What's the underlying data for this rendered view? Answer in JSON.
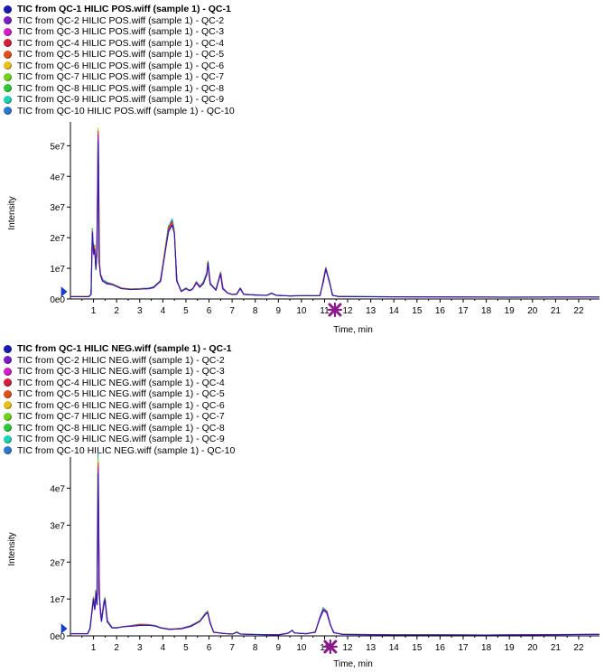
{
  "chart_data": [
    {
      "type": "line",
      "id": "pos",
      "xlabel": "Time, min",
      "ylabel": "Intensity",
      "xlim": [
        0.0,
        22.9
      ],
      "ylim": [
        0,
        56000000
      ],
      "x_ticks": [
        "1",
        "2",
        "3",
        "4",
        "5",
        "6",
        "7",
        "8",
        "9",
        "10",
        "11",
        "12",
        "13",
        "14",
        "15",
        "16",
        "17",
        "18",
        "19",
        "20",
        "21",
        "22"
      ],
      "y_ticks": [
        {
          "label": "0e0",
          "value": 0
        },
        {
          "label": "1e7",
          "value": 10000000
        },
        {
          "label": "2e7",
          "value": 20000000
        },
        {
          "label": "3e7",
          "value": 30000000
        },
        {
          "label": "4e7",
          "value": 40000000
        },
        {
          "label": "5e7",
          "value": 50000000
        }
      ],
      "grid": false,
      "legend_position": "top-left",
      "marker_start_arrow": "blue right-pointing arrow at 0e0",
      "marker_cursor_x": 11.45,
      "series": [
        {
          "name": "TIC from QC-1 HILIC POS.wiff (sample 1) - QC-1",
          "color": "#1a1ab0",
          "bold": true
        },
        {
          "name": "TIC from QC-2 HILIC POS.wiff (sample 1) - QC-2",
          "color": "#7a1fc8"
        },
        {
          "name": "TIC from QC-3 HILIC POS.wiff (sample 1) - QC-3",
          "color": "#d21fc8"
        },
        {
          "name": "TIC from QC-4 HILIC POS.wiff (sample 1) - QC-4",
          "color": "#d21f3c"
        },
        {
          "name": "TIC from QC-5 HILIC POS.wiff (sample 1) - QC-5",
          "color": "#e0501a"
        },
        {
          "name": "TIC from QC-6 HILIC POS.wiff (sample 1) - QC-6",
          "color": "#e6c21a"
        },
        {
          "name": "TIC from QC-7 HILIC POS.wiff (sample 1) - QC-7",
          "color": "#6fd21f"
        },
        {
          "name": "TIC from QC-8 HILIC POS.wiff (sample 1) - QC-8",
          "color": "#2dc83c"
        },
        {
          "name": "TIC from QC-9 HILIC POS.wiff (sample 1) - QC-9",
          "color": "#1fd2b4"
        },
        {
          "name": "TIC from QC-10 HILIC POS.wiff (sample 1) - QC-10",
          "color": "#2d78d2"
        }
      ],
      "trace_points": [
        [
          0.0,
          800000
        ],
        [
          0.8,
          800000
        ],
        [
          0.9,
          1500000
        ],
        [
          0.95,
          22000000
        ],
        [
          1.0,
          15000000
        ],
        [
          1.05,
          17000000
        ],
        [
          1.1,
          10000000
        ],
        [
          1.15,
          16000000
        ],
        [
          1.2,
          54000000
        ],
        [
          1.25,
          12000000
        ],
        [
          1.3,
          8000000
        ],
        [
          1.4,
          6000000
        ],
        [
          1.6,
          5200000
        ],
        [
          1.8,
          4800000
        ],
        [
          2.2,
          3500000
        ],
        [
          2.6,
          3200000
        ],
        [
          3.0,
          3300000
        ],
        [
          3.4,
          3500000
        ],
        [
          3.6,
          3800000
        ],
        [
          3.9,
          6000000
        ],
        [
          4.1,
          16000000
        ],
        [
          4.25,
          23000000
        ],
        [
          4.4,
          25000000
        ],
        [
          4.5,
          22000000
        ],
        [
          4.6,
          6000000
        ],
        [
          4.8,
          2500000
        ],
        [
          5.0,
          3500000
        ],
        [
          5.15,
          2800000
        ],
        [
          5.3,
          3300000
        ],
        [
          5.45,
          5500000
        ],
        [
          5.6,
          4000000
        ],
        [
          5.75,
          5200000
        ],
        [
          5.9,
          8500000
        ],
        [
          5.95,
          12000000
        ],
        [
          6.05,
          5000000
        ],
        [
          6.3,
          3000000
        ],
        [
          6.5,
          8500000
        ],
        [
          6.6,
          3500000
        ],
        [
          6.8,
          2000000
        ],
        [
          7.0,
          1500000
        ],
        [
          7.2,
          1600000
        ],
        [
          7.35,
          3500000
        ],
        [
          7.5,
          1500000
        ],
        [
          8.0,
          1300000
        ],
        [
          8.5,
          1200000
        ],
        [
          8.7,
          1900000
        ],
        [
          8.9,
          1200000
        ],
        [
          9.5,
          1000000
        ],
        [
          10.0,
          1100000
        ],
        [
          10.8,
          1100000
        ],
        [
          10.95,
          6000000
        ],
        [
          11.05,
          10000000
        ],
        [
          11.2,
          6000000
        ],
        [
          11.35,
          1200000
        ],
        [
          11.6,
          800000
        ],
        [
          14.0,
          700000
        ],
        [
          18.0,
          650000
        ],
        [
          19.0,
          600000
        ],
        [
          22.9,
          700000
        ]
      ]
    },
    {
      "type": "line",
      "id": "neg",
      "xlabel": "Time, min",
      "ylabel": "Intensity",
      "xlim": [
        0.0,
        22.9
      ],
      "ylim": [
        0,
        47000000
      ],
      "x_ticks": [
        "1",
        "2",
        "3",
        "4",
        "5",
        "6",
        "7",
        "8",
        "9",
        "10",
        "11",
        "12",
        "13",
        "14",
        "15",
        "16",
        "17",
        "18",
        "19",
        "20",
        "21",
        "22"
      ],
      "y_ticks": [
        {
          "label": "0e0",
          "value": 0
        },
        {
          "label": "1e7",
          "value": 10000000
        },
        {
          "label": "2e7",
          "value": 20000000
        },
        {
          "label": "3e7",
          "value": 30000000
        },
        {
          "label": "4e7",
          "value": 40000000
        }
      ],
      "grid": false,
      "legend_position": "top-left",
      "marker_start_arrow": "blue right-pointing arrow at 0e0",
      "marker_cursor_x": 11.25,
      "series": [
        {
          "name": "TIC from QC-1 HILIC NEG.wiff (sample 1) - QC-1",
          "color": "#1a1ab0",
          "bold": true
        },
        {
          "name": "TIC from QC-2 HILIC NEG.wiff (sample 1) - QC-2",
          "color": "#7a1fc8"
        },
        {
          "name": "TIC from QC-3 HILIC NEG.wiff (sample 1) - QC-3",
          "color": "#d21fc8"
        },
        {
          "name": "TIC from QC-4 HILIC NEG.wiff (sample 1) - QC-4",
          "color": "#d21f3c"
        },
        {
          "name": "TIC from QC-5 HILIC NEG.wiff (sample 1) - QC-5",
          "color": "#e0501a"
        },
        {
          "name": "TIC from QC-6 HILIC NEG.wiff (sample 1) - QC-6",
          "color": "#e6c21a"
        },
        {
          "name": "TIC from QC-7 HILIC NEG.wiff (sample 1) - QC-7",
          "color": "#6fd21f"
        },
        {
          "name": "TIC from QC-8 HILIC NEG.wiff (sample 1) - QC-8",
          "color": "#2dc83c"
        },
        {
          "name": "TIC from QC-9 HILIC NEG.wiff (sample 1) - QC-9",
          "color": "#1fd2b4"
        },
        {
          "name": "TIC from QC-10 HILIC NEG.wiff (sample 1) - QC-10",
          "color": "#2d78d2"
        }
      ],
      "trace_points": [
        [
          0.0,
          600000
        ],
        [
          0.75,
          600000
        ],
        [
          0.85,
          2000000
        ],
        [
          0.95,
          8000000
        ],
        [
          1.0,
          10000000
        ],
        [
          1.05,
          7500000
        ],
        [
          1.1,
          12000000
        ],
        [
          1.15,
          8500000
        ],
        [
          1.2,
          47000000
        ],
        [
          1.25,
          12000000
        ],
        [
          1.3,
          6500000
        ],
        [
          1.35,
          4000000
        ],
        [
          1.45,
          9000000
        ],
        [
          1.5,
          10000000
        ],
        [
          1.6,
          4000000
        ],
        [
          1.8,
          2200000
        ],
        [
          2.0,
          2200000
        ],
        [
          2.3,
          2500000
        ],
        [
          2.6,
          2700000
        ],
        [
          3.0,
          3000000
        ],
        [
          3.4,
          3000000
        ],
        [
          3.7,
          2700000
        ],
        [
          3.9,
          2200000
        ],
        [
          4.3,
          1800000
        ],
        [
          4.8,
          2000000
        ],
        [
          5.2,
          2700000
        ],
        [
          5.6,
          4000000
        ],
        [
          5.85,
          6000000
        ],
        [
          5.95,
          6500000
        ],
        [
          6.05,
          3500000
        ],
        [
          6.2,
          1000000
        ],
        [
          6.6,
          700000
        ],
        [
          7.0,
          500000
        ],
        [
          7.2,
          1000000
        ],
        [
          7.35,
          500000
        ],
        [
          8.0,
          400000
        ],
        [
          9.0,
          300000
        ],
        [
          9.4,
          700000
        ],
        [
          9.6,
          1500000
        ],
        [
          9.7,
          800000
        ],
        [
          10.2,
          600000
        ],
        [
          10.6,
          1000000
        ],
        [
          10.8,
          5000000
        ],
        [
          10.95,
          7200000
        ],
        [
          11.1,
          6500000
        ],
        [
          11.25,
          3000000
        ],
        [
          11.4,
          900000
        ],
        [
          11.8,
          400000
        ],
        [
          14.0,
          300000
        ],
        [
          18.0,
          250000
        ],
        [
          20.0,
          300000
        ],
        [
          22.9,
          400000
        ]
      ]
    }
  ]
}
